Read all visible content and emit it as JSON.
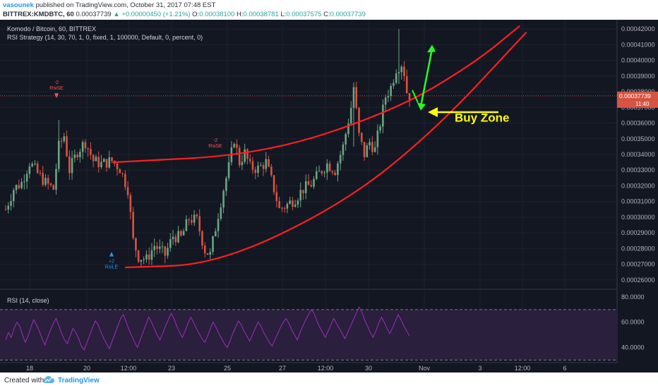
{
  "header": {
    "user": "vasounek",
    "published": "published on TradingView.com, October 31, 2017 07:48 EST",
    "symbol_line": "BITTREX:KMDBTC, 60",
    "last": "0.00037739",
    "change": "▲ +0.00000450 (+1.21%)",
    "ohlc": [
      {
        "k": "O:",
        "v": "0.00038100"
      },
      {
        "k": "H:",
        "v": "0.00038781"
      },
      {
        "k": "L:",
        "v": "0.00037575"
      },
      {
        "k": "C:",
        "v": "0.00037739"
      }
    ]
  },
  "overlay": {
    "pair_title": "Komodo / Bitcoin, 60, BITTREX",
    "strategy": "RSI Strategy (14, 30, 70, 1, 0, fixed, 1, 100000, Default, 0, percent, 0)",
    "rsi_title": "RSI (14, close)",
    "buy_zone": "Buy Zone",
    "signal_short_1": "RsiSE",
    "signal_short_2": "RsiSE",
    "signal_long": "RsiLE",
    "signal_qty_short": "-2",
    "signal_qty_long": "+2",
    "price_tag": "0.00037739",
    "countdown": "11:40"
  },
  "footer": {
    "created": "Created with",
    "brand": "TradingView"
  },
  "colors": {
    "background": "#131722",
    "up": "#6ba583",
    "down": "#d75442",
    "channel": "#ff1f1f",
    "arrow_green": "#22ff22",
    "arrow_yellow": "#ffff00",
    "rsi_line": "#a02dbf",
    "rsi_band": "#2a1f3d"
  },
  "chart_data": [
    {
      "type": "candlestick",
      "title": "Komodo / Bitcoin, 60, BITTREX",
      "x_ticks": [
        "18",
        "20",
        "12:00",
        "23",
        "25",
        "27",
        "12:00",
        "30",
        "Nov",
        "3",
        "12:00",
        "6"
      ],
      "y_ticks": [
        "0.00042000",
        "0.00041000",
        "0.00040000",
        "0.00039000",
        "0.00038000",
        "0.00037000",
        "0.00036000",
        "0.00035000",
        "0.00034000",
        "0.00033000",
        "0.00032000",
        "0.00031000",
        "0.00030000",
        "0.00029000",
        "0.00028000",
        "0.00027000",
        "0.00026000"
      ],
      "ylim": [
        0.000255,
        0.000425
      ],
      "last_price": 0.00037739,
      "price_path": [
        [
          0,
          0.000305
        ],
        [
          3,
          0.000318
        ],
        [
          6,
          0.000322
        ],
        [
          9,
          0.000335
        ],
        [
          12,
          0.000328
        ],
        [
          15,
          0.000322
        ],
        [
          18,
          0.000318
        ],
        [
          20,
          0.000345
        ],
        [
          22,
          0.000352
        ],
        [
          24,
          0.00033
        ],
        [
          27,
          0.000342
        ],
        [
          30,
          0.000348
        ],
        [
          33,
          0.000336
        ],
        [
          36,
          0.000334
        ],
        [
          40,
          0.000336
        ],
        [
          43,
          0.000331
        ],
        [
          46,
          0.000318
        ],
        [
          48,
          0.000285
        ],
        [
          50,
          0.000275
        ],
        [
          53,
          0.000273
        ],
        [
          56,
          0.000282
        ],
        [
          60,
          0.000276
        ],
        [
          63,
          0.000288
        ],
        [
          66,
          0.000287
        ],
        [
          69,
          0.000299
        ],
        [
          72,
          0.000298
        ],
        [
          75,
          0.000279
        ],
        [
          77,
          0.000276
        ],
        [
          80,
          0.000302
        ],
        [
          82,
          0.000318
        ],
        [
          84,
          0.000332
        ],
        [
          86,
          0.00035
        ],
        [
          88,
          0.000335
        ],
        [
          90,
          0.000341
        ],
        [
          92,
          0.000332
        ],
        [
          95,
          0.000331
        ],
        [
          98,
          0.000335
        ],
        [
          101,
          0.000318
        ],
        [
          103,
          0.000305
        ],
        [
          106,
          0.000308
        ],
        [
          109,
          0.000312
        ],
        [
          112,
          0.000318
        ],
        [
          115,
          0.000321
        ],
        [
          118,
          0.000328
        ],
        [
          121,
          0.000334
        ],
        [
          124,
          0.00033
        ],
        [
          127,
          0.000345
        ],
        [
          130,
          0.00037
        ],
        [
          131,
          0.000383
        ],
        [
          133,
          0.000352
        ],
        [
          135,
          0.00034
        ],
        [
          137,
          0.000348
        ],
        [
          139,
          0.000343
        ],
        [
          141,
          0.00036
        ],
        [
          143,
          0.000377
        ],
        [
          145,
          0.000383
        ],
        [
          147,
          0.000395
        ],
        [
          149,
          0.000398
        ],
        [
          150,
          0.000392
        ],
        [
          151,
          0.00038
        ],
        [
          152,
          0.000377
        ]
      ],
      "channel_upper": [
        [
          0.171,
          0.000335
        ],
        [
          0.4,
          0.00034
        ],
        [
          0.6,
          0.000368
        ],
        [
          0.72,
          0.000398
        ],
        [
          0.79,
          0.000422
        ]
      ],
      "channel_lower": [
        [
          0.19,
          0.000268
        ],
        [
          0.33,
          0.00027
        ],
        [
          0.52,
          0.000308
        ],
        [
          0.66,
          0.000355
        ],
        [
          0.8,
          0.000418
        ]
      ],
      "annotations": [
        "Buy Zone"
      ]
    },
    {
      "type": "line",
      "title": "RSI (14, close)",
      "y_ticks": [
        "80.0000",
        "60.0000",
        "40.0000"
      ],
      "ylim": [
        28,
        85
      ],
      "band": [
        30,
        70
      ],
      "values": [
        46,
        52,
        48,
        55,
        60,
        57,
        50,
        44,
        49,
        56,
        62,
        58,
        53,
        47,
        42,
        48,
        54,
        59,
        63,
        57,
        51,
        46,
        43,
        49,
        55,
        52,
        47,
        41,
        38,
        44,
        50,
        56,
        61,
        58,
        52,
        47,
        43,
        39,
        45,
        51,
        57,
        63,
        66,
        60,
        54,
        49,
        44,
        40,
        46,
        52,
        58,
        64,
        60,
        55,
        50,
        46,
        51,
        57,
        62,
        67,
        63,
        57,
        52,
        48,
        53,
        59,
        64,
        60,
        55,
        51,
        47,
        44,
        49,
        55,
        60,
        56,
        51,
        47,
        43,
        40,
        45,
        51,
        56,
        61,
        58,
        53,
        49,
        45,
        50,
        55,
        60,
        57,
        52,
        48,
        44,
        41,
        46,
        51,
        56,
        60,
        63,
        59,
        54,
        50,
        46,
        52,
        57,
        62,
        66,
        70,
        67,
        61,
        56,
        52,
        48,
        53,
        58,
        63,
        59,
        55,
        51,
        47,
        52,
        57,
        62,
        67,
        72,
        68,
        62,
        57,
        52,
        48,
        53,
        59,
        64,
        60,
        55,
        51,
        56,
        61,
        66,
        62,
        57,
        53,
        49
      ]
    }
  ]
}
